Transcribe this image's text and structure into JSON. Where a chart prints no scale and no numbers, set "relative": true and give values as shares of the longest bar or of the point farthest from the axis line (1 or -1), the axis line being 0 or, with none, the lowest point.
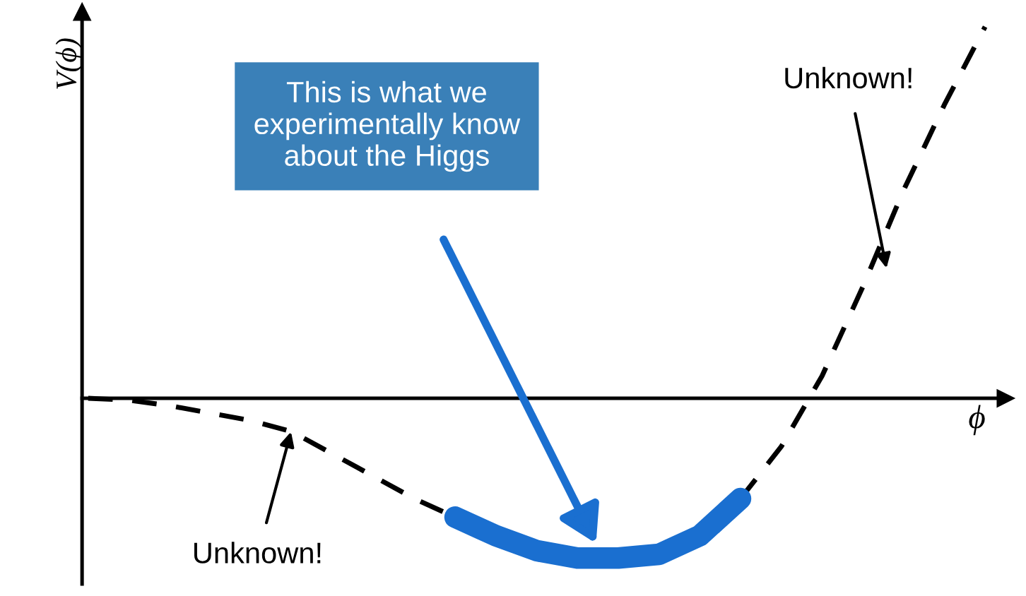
{
  "chart_data": {
    "type": "line",
    "relative": true,
    "xlabel": "ϕ",
    "ylabel": "V(ϕ)",
    "categories": [
      null,
      null,
      null,
      null,
      null,
      null,
      null,
      null,
      null,
      null,
      null,
      null,
      null,
      null,
      null,
      null,
      null,
      null,
      null,
      null,
      null,
      null,
      null
    ],
    "series": [
      {
        "color": "#000000",
        "line_style": "dashed",
        "values": [
          0,
          -0.005,
          -0.02,
          -0.04,
          -0.06,
          -0.09,
          -0.15,
          -0.21,
          -0.27,
          -0.32,
          null,
          null,
          null,
          null,
          null,
          null,
          -0.27,
          -0.13,
          0.06,
          0.3,
          0.56,
          0.79,
          1.0
        ]
      },
      {
        "color": "#1a6fd0",
        "line_style": "solid",
        "values": [
          null,
          null,
          null,
          null,
          null,
          null,
          null,
          null,
          null,
          -0.32,
          -0.37,
          -0.41,
          -0.43,
          -0.43,
          -0.42,
          -0.37,
          -0.27,
          null,
          null,
          null,
          null,
          null,
          null
        ]
      }
    ],
    "annotations": [
      "This is what we\nexperimentally know\nabout the Higgs",
      "Unknown!",
      "Unknown!"
    ],
    "legend": false,
    "marker": "none"
  }
}
